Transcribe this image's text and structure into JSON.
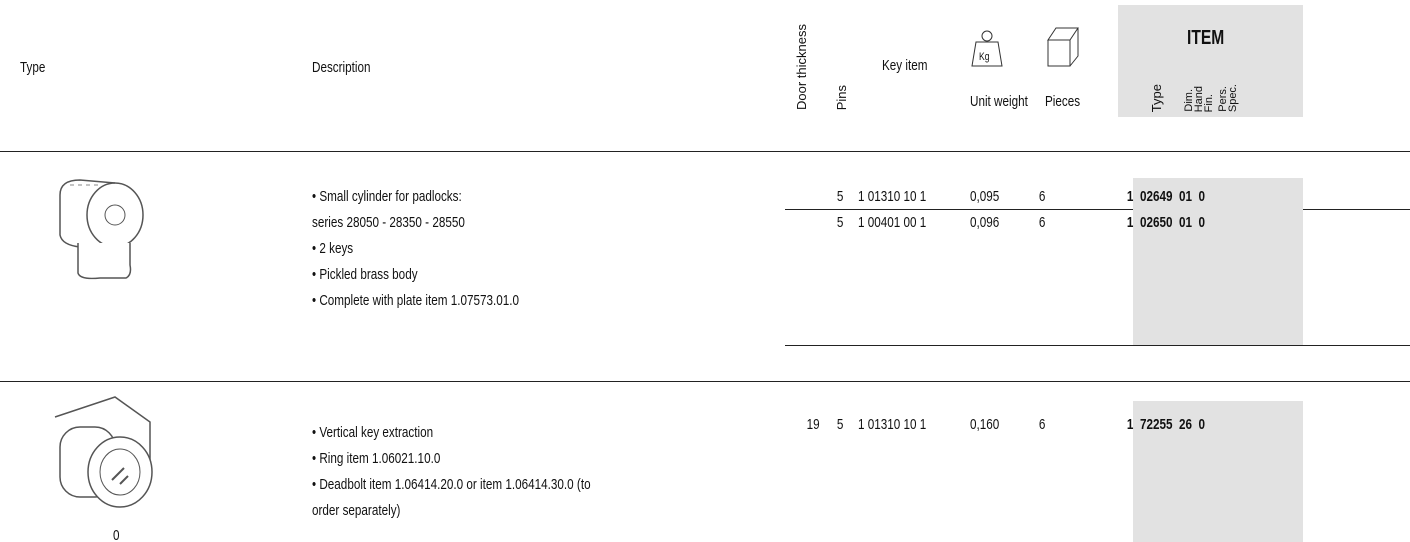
{
  "header": {
    "type": "Type",
    "description": "Description",
    "door_thickness": "Door thickness",
    "pins": "Pins",
    "key_item": "Key item",
    "weight_icon": "Kg",
    "unit_weight": "Unit weight",
    "pieces": "Pieces",
    "item": {
      "title": "ITEM",
      "columns": [
        "Type",
        "Dim.",
        "Hand",
        "Fin.",
        "Pers.",
        "Spec."
      ]
    }
  },
  "products": [
    {
      "bullets": [
        [
          "Small cylinder for padlocks:",
          "series 28050 - 28350 - 28550"
        ],
        [
          "2 keys"
        ],
        [
          "Pickled brass body"
        ],
        [
          "Complete with plate item 1.07573.01.0"
        ]
      ],
      "rows": [
        {
          "pins": "5",
          "key_item": "1 01310 10 1",
          "unit_weight": "0,095",
          "pieces": "6",
          "item_prefix": "1",
          "item": "02649  01  0"
        },
        {
          "pins": "5",
          "key_item": "1 00401 00 1",
          "unit_weight": "0,096",
          "pieces": "6",
          "item_prefix": "1",
          "item": "02650  01  0"
        }
      ]
    },
    {
      "bullets": [
        [
          "Vertical key extraction"
        ],
        [
          "Ring item 1.06021.10.0"
        ],
        [
          "Deadbolt item 1.06414.20.0 or item 1.06414.30.0 (to",
          "order separately)"
        ]
      ],
      "caption": "0",
      "rows": [
        {
          "door_thickness": "19",
          "pins": "5",
          "key_item": "1 01310 10 1",
          "unit_weight": "0,160",
          "pieces": "6",
          "item_prefix": "1",
          "item": "72255  26  0"
        }
      ]
    }
  ]
}
